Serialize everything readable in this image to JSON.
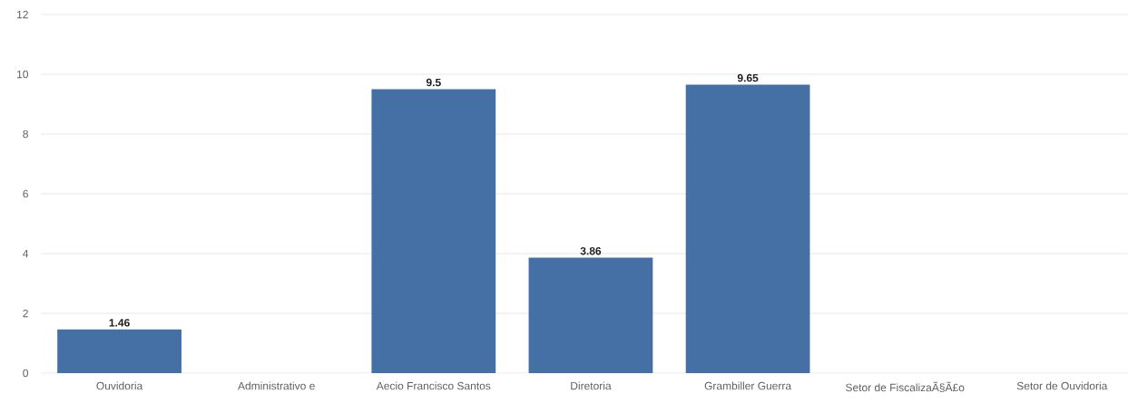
{
  "chart_data": {
    "type": "bar",
    "categories": [
      "Ouvidoria",
      "Administrativo e",
      "Aecio Francisco Santos",
      "Diretoria",
      "Grambiller Guerra",
      "Setor de FiscalizaÃ§Ã£o",
      "Setor de Ouvidoria"
    ],
    "values": [
      1.46,
      null,
      9.5,
      3.86,
      9.65,
      null,
      null
    ],
    "color": "#4470a5",
    "ylim": [
      0,
      12
    ],
    "yticks": [
      0,
      2,
      4,
      6,
      8,
      10,
      12
    ],
    "grid": "y",
    "data_labels": true
  }
}
